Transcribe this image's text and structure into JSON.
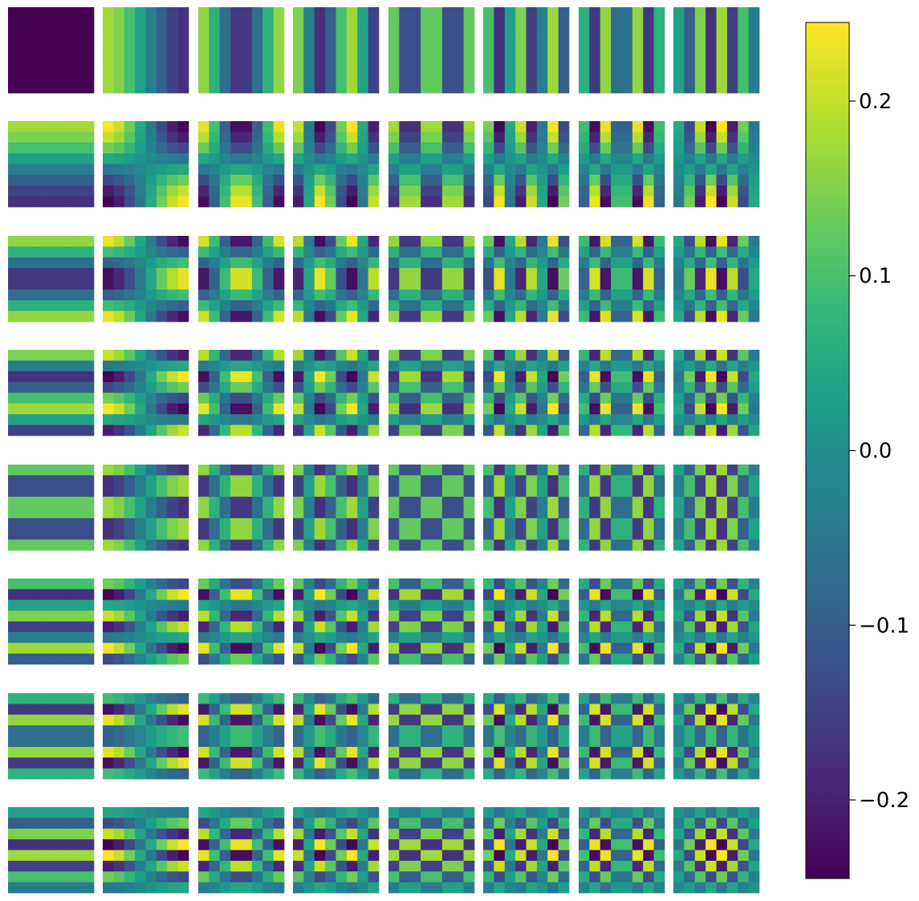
{
  "chart_data": {
    "type": "heatmap",
    "title": "",
    "description_type": "dct-basis-grid",
    "grid_rows": 8,
    "grid_cols": 8,
    "pixels_per_tile": 8,
    "colormap": "viridis",
    "value_range": [
      -0.245,
      0.245
    ],
    "cell_value_formula": "c(u)*c(v)*cos((2x+1)*u*pi/16)*cos((2y+1)*v*pi/16) with c(0)=sqrt(1/8), c(k)=1/2; tile (0,0) clamped to colorbar minimum",
    "dc_tile_display_value": -0.245,
    "colorbar": {
      "ticks": [
        -0.2,
        -0.1,
        0.0,
        0.1,
        0.2
      ],
      "tick_labels": [
        "−0.2",
        "−0.1",
        "0.0",
        "0.1",
        "0.2"
      ],
      "colormap_stops": [
        "#440154",
        "#482878",
        "#3e4989",
        "#31688e",
        "#26828e",
        "#1f9e89",
        "#35b779",
        "#6ece58",
        "#b5de2b",
        "#fde725"
      ]
    }
  }
}
